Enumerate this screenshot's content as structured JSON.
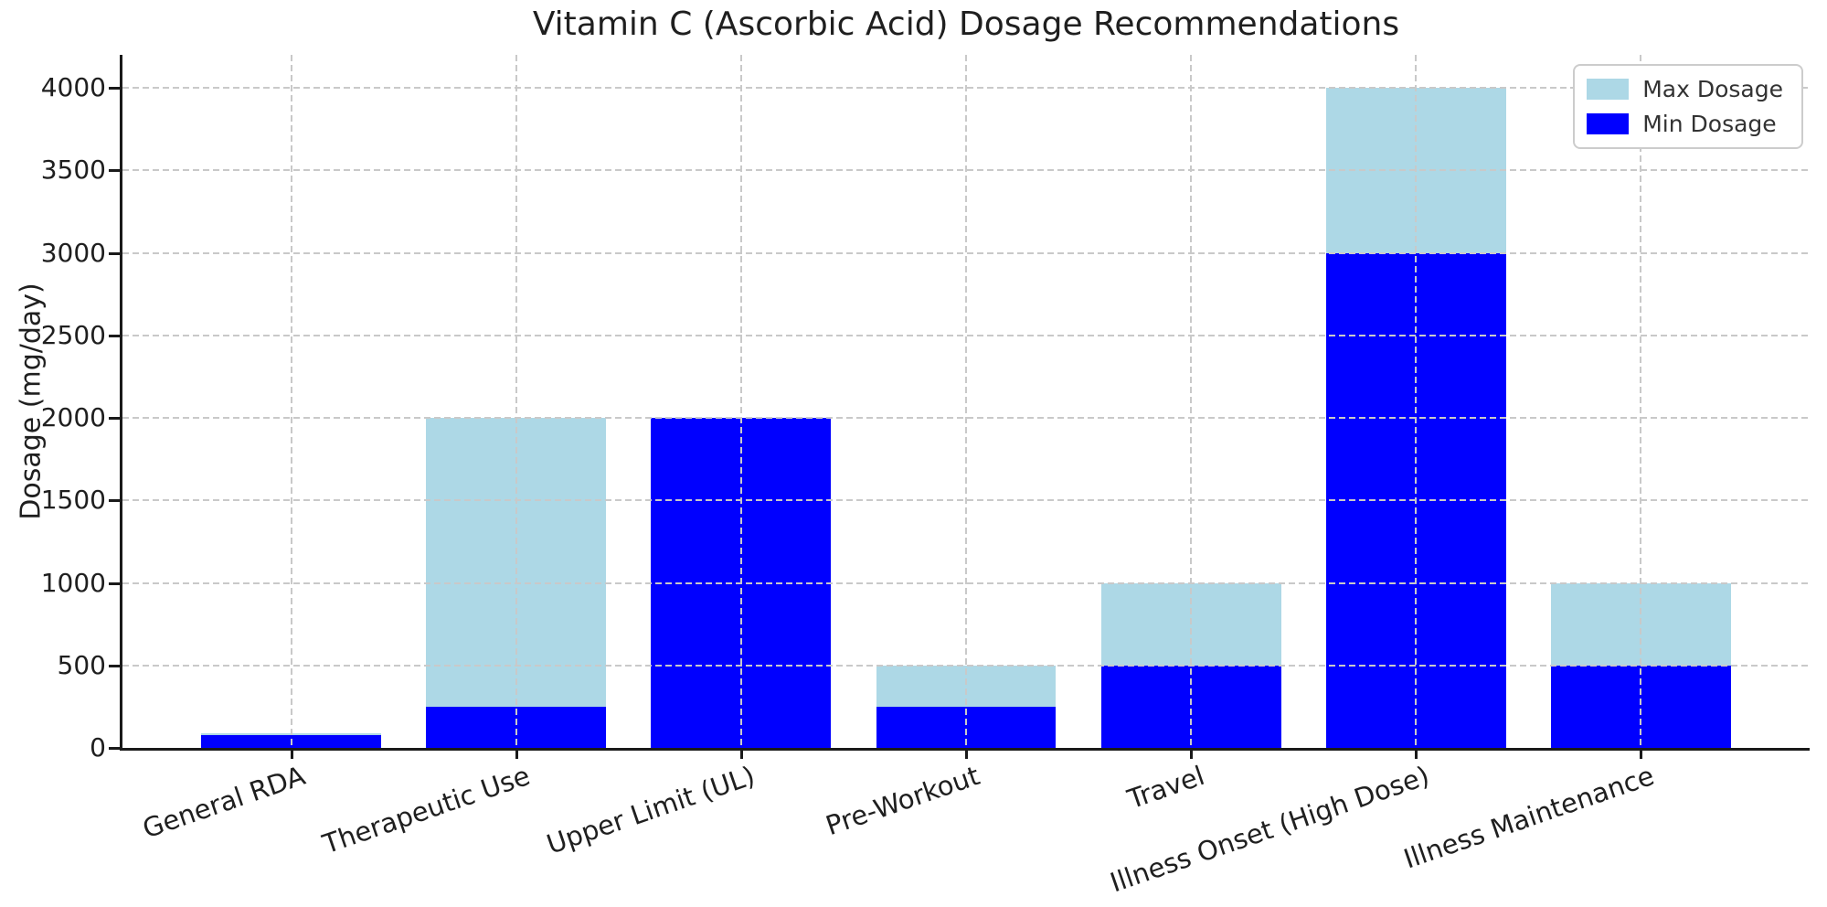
{
  "chart_data": {
    "type": "bar",
    "title": "Vitamin C (Ascorbic Acid) Dosage Recommendations",
    "xlabel": "",
    "ylabel": "Dosage (mg/day)",
    "categories": [
      "General RDA",
      "Therapeutic Use",
      "Upper Limit (UL)",
      "Pre-Workout",
      "Travel",
      "Illness Onset (High Dose)",
      "Illness Maintenance"
    ],
    "series": [
      {
        "name": "Max Dosage",
        "color": "#ADD8E6",
        "values": [
          90,
          2000,
          2000,
          500,
          1000,
          4000,
          1000
        ]
      },
      {
        "name": "Min Dosage",
        "color": "#0000FF",
        "values": [
          75,
          250,
          2000,
          250,
          500,
          3000,
          500
        ]
      }
    ],
    "bar_mode": "overlay",
    "ylim": [
      0,
      4200
    ],
    "yticks": [
      0,
      500,
      1000,
      1500,
      2000,
      2500,
      3000,
      3500,
      4000
    ],
    "grid": true,
    "grid_style": "dashed",
    "grid_color": "#c9c9c9",
    "grid_above_bars": true,
    "legend_position": "upper right",
    "x_tick_rotation_deg": 19
  }
}
